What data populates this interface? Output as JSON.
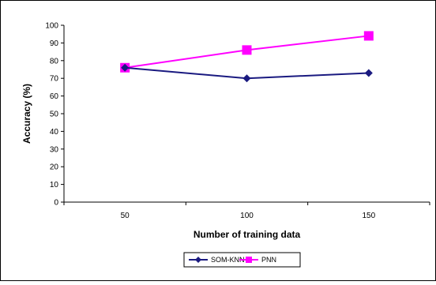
{
  "chart_data": {
    "type": "line",
    "categories": [
      "50",
      "100",
      "150"
    ],
    "series": [
      {
        "name": "SOM-KNN",
        "values": [
          76,
          70,
          73
        ],
        "color": "#1a1a80",
        "marker": "diamond"
      },
      {
        "name": "PNN",
        "values": [
          76,
          86,
          94
        ],
        "color": "#ff00ff",
        "marker": "square"
      }
    ],
    "xlabel": "Number of training data",
    "ylabel": "Accuracy  (%)",
    "ylim": [
      0,
      100
    ],
    "yticks": [
      "0",
      "10",
      "20",
      "30",
      "40",
      "50",
      "60",
      "70",
      "80",
      "90",
      "100"
    ],
    "grid": false,
    "legend_position": "bottom"
  }
}
